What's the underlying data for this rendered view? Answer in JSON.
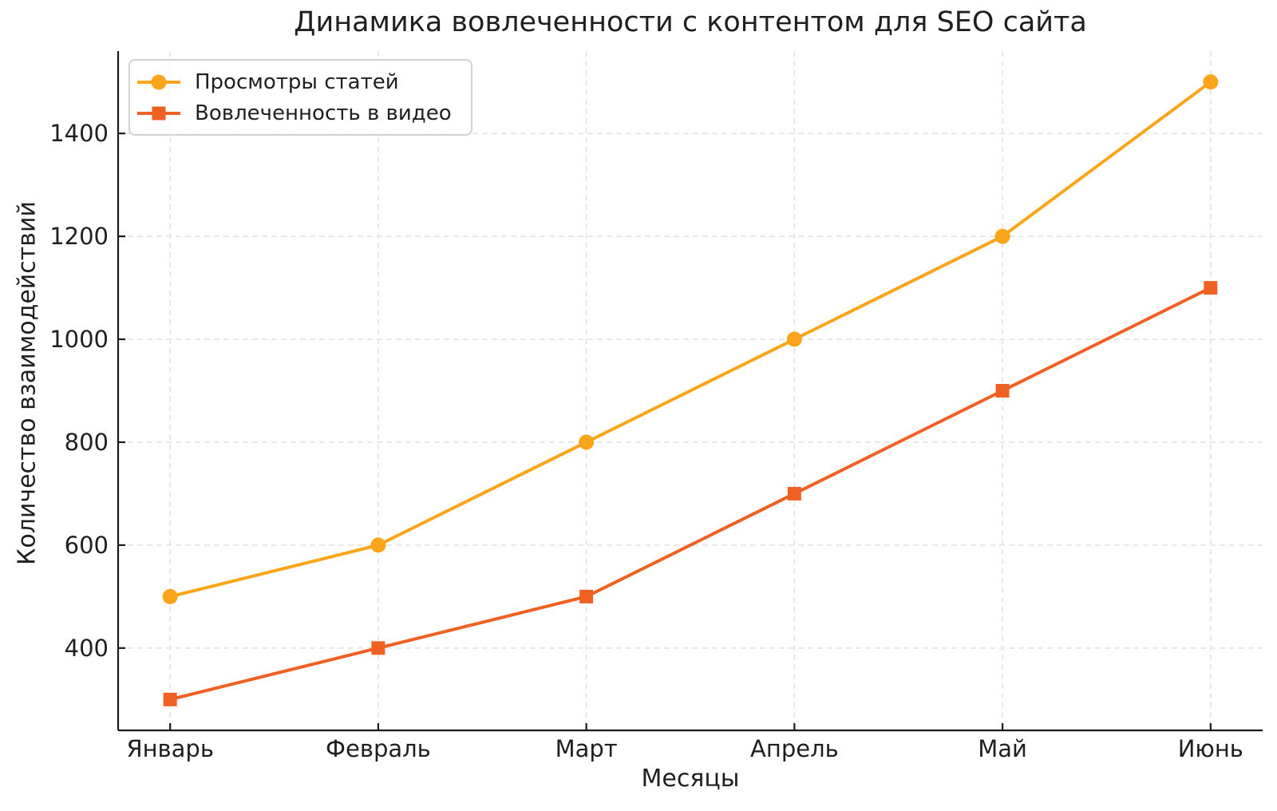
{
  "chart_data": {
    "type": "line",
    "title": "Динамика вовлеченности с контентом для SEO сайта",
    "xlabel": "Месяцы",
    "ylabel": "Количество взаимодействий",
    "categories": [
      "Январь",
      "Февраль",
      "Март",
      "Апрель",
      "Май",
      "Июнь"
    ],
    "series": [
      {
        "id": "article-views",
        "name": "Просмотры статей",
        "values": [
          500,
          600,
          800,
          1000,
          1200,
          1500
        ],
        "color": "#FAA51A",
        "marker": "circle"
      },
      {
        "id": "video-engagement",
        "name": "Вовлеченность в видео",
        "values": [
          300,
          400,
          500,
          700,
          900,
          1100
        ],
        "color": "#EE6123",
        "marker": "square"
      }
    ],
    "yticks": [
      400,
      600,
      800,
      1000,
      1200,
      1400
    ],
    "ylim": [
      240,
      1560
    ],
    "grid": "dashed",
    "legend_position": "upper-left",
    "colors": {
      "grid": "#E4E4E4",
      "axis": "#1A1A1A",
      "text": "#1F1F1F",
      "background": "#FFFFFF"
    }
  }
}
